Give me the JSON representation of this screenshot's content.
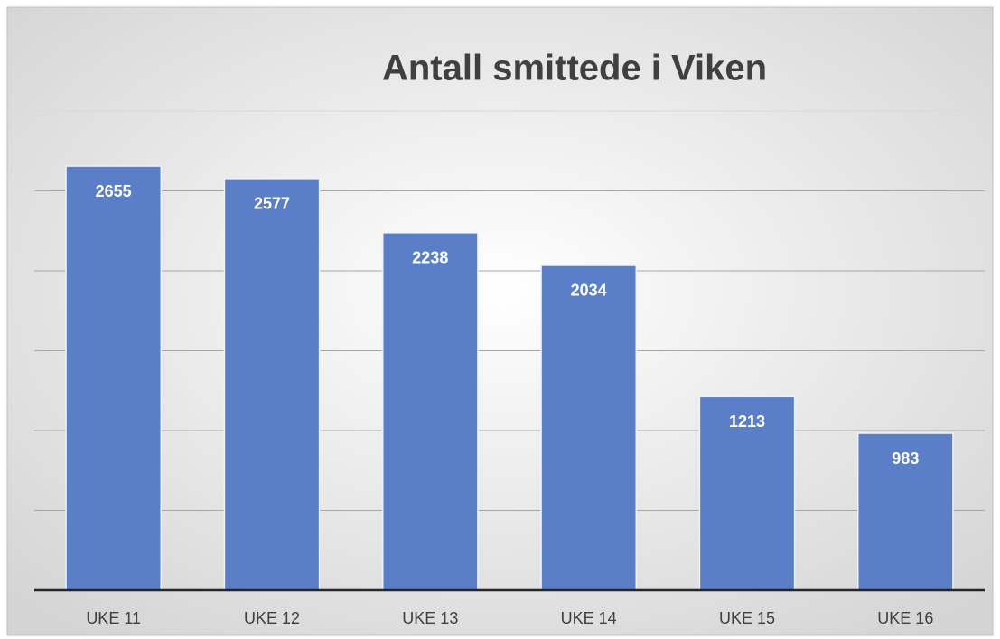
{
  "chart_data": {
    "type": "bar",
    "title": "Antall smittede i Viken",
    "categories": [
      "UKE 11",
      "UKE 12",
      "UKE 13",
      "UKE 14",
      "UKE 15",
      "UKE 16"
    ],
    "values": [
      2655,
      2577,
      2238,
      2034,
      1213,
      983
    ],
    "color": "#5a7fc8",
    "ylim": [
      0,
      3000
    ],
    "yticks": [
      0,
      500,
      1000,
      1500,
      2000,
      2500,
      3000
    ],
    "grid": true
  }
}
